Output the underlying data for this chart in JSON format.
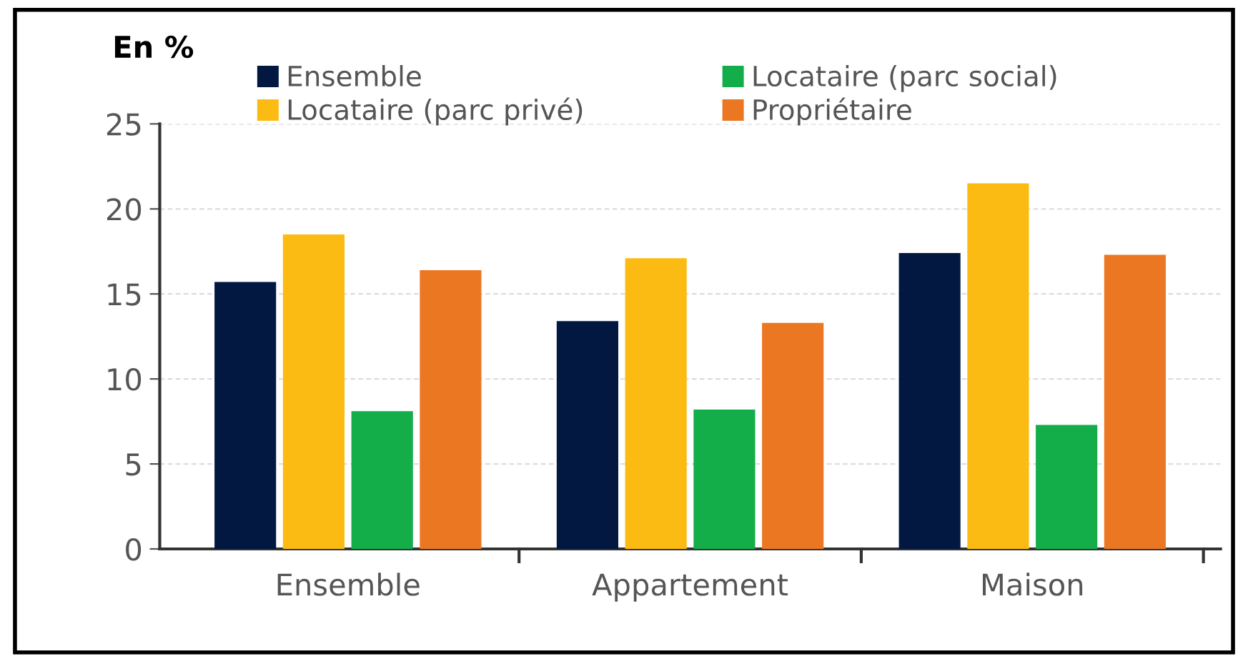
{
  "chart_data": {
    "type": "bar",
    "title": "En %",
    "categories": [
      "Ensemble",
      "Appartement",
      "Maison"
    ],
    "series": [
      {
        "name": "Ensemble",
        "color": "#021841",
        "values": [
          15.7,
          13.4,
          17.4
        ]
      },
      {
        "name": "Locataire (parc privé)",
        "color": "#fcbb12",
        "values": [
          18.5,
          17.1,
          21.5
        ]
      },
      {
        "name": "Locataire (parc social)",
        "color": "#13ad4a",
        "values": [
          8.1,
          8.2,
          7.3
        ]
      },
      {
        "name": "Propriétaire",
        "color": "#ec7723",
        "values": [
          16.4,
          13.3,
          17.3
        ]
      }
    ],
    "ylim": [
      0,
      25
    ],
    "yticks": [
      0,
      5,
      10,
      15,
      20,
      25
    ],
    "grid": "y",
    "legend": "top"
  }
}
